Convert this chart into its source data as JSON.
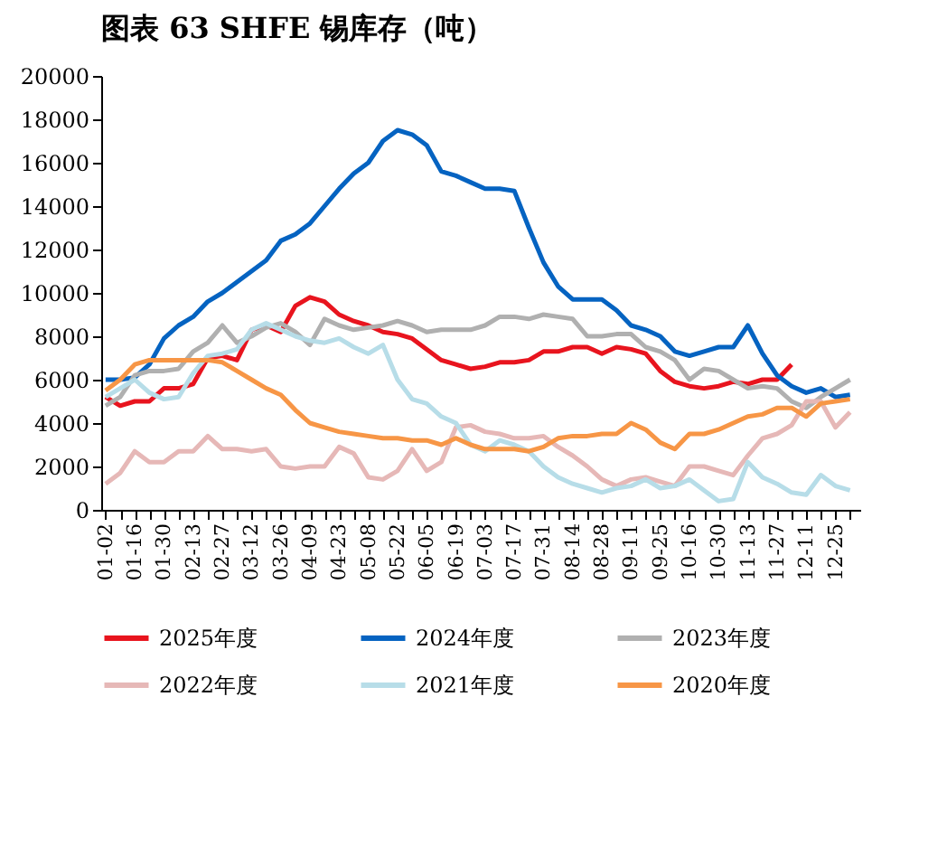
{
  "chart_data": {
    "type": "line",
    "title": "图表 63   SHFE 锡库存（吨）",
    "categories": [
      "01-02",
      null,
      "01-16",
      null,
      "01-30",
      null,
      "02-13",
      null,
      "02-27",
      null,
      "03-12",
      null,
      "03-26",
      null,
      "04-09",
      null,
      "04-23",
      null,
      "05-08",
      null,
      "05-22",
      null,
      "06-05",
      null,
      "06-19",
      null,
      "07-03",
      null,
      "07-17",
      null,
      "07-31",
      null,
      "08-14",
      null,
      "08-28",
      null,
      "09-11",
      null,
      "09-25",
      null,
      "10-16",
      null,
      "10-30",
      null,
      "11-13",
      null,
      "11-27",
      null,
      "12-11",
      null,
      "12-25",
      null
    ],
    "ylim": [
      0,
      20000
    ],
    "yticks": [
      0,
      2000,
      4000,
      6000,
      8000,
      10000,
      12000,
      14000,
      16000,
      18000,
      20000
    ],
    "grid": false,
    "legend": "bottom",
    "line_style": "solid",
    "marker": "none",
    "series": [
      {
        "name": "2025年度",
        "color": "#e8141e",
        "values": [
          5200,
          4800,
          5000,
          5000,
          5600,
          5600,
          5800,
          7000,
          7100,
          6900,
          8300,
          8500,
          8200,
          9400,
          9800,
          9600,
          9000,
          8700,
          8500,
          8200,
          8100,
          7900,
          7400,
          6900,
          6700,
          6500,
          6600,
          6800,
          6800,
          6900,
          7300,
          7300,
          7500,
          7500,
          7200,
          7500,
          7400,
          7200,
          6400,
          5900,
          5700,
          5600,
          5700,
          5900,
          5800,
          6000,
          6000,
          6700,
          null,
          null,
          null,
          null
        ]
      },
      {
        "name": "2024年度",
        "color": "#0563c1",
        "values": [
          6000,
          6000,
          6100,
          6700,
          7900,
          8500,
          8900,
          9600,
          10000,
          10500,
          11000,
          11500,
          12400,
          12700,
          13200,
          14000,
          14800,
          15500,
          16000,
          17000,
          17500,
          17300,
          16800,
          15600,
          15400,
          15100,
          14800,
          14800,
          14700,
          13000,
          11400,
          10300,
          9700,
          9700,
          9700,
          9200,
          8500,
          8300,
          8000,
          7300,
          7100,
          7300,
          7500,
          7500,
          8500,
          7200,
          6200,
          5700,
          5400,
          5600,
          5200,
          5300
        ]
      },
      {
        "name": "2023年度",
        "color": "#b0b0b0",
        "values": [
          4800,
          5200,
          6200,
          6400,
          6400,
          6500,
          7300,
          7700,
          8500,
          7700,
          8000,
          8400,
          8600,
          8200,
          7600,
          8800,
          8500,
          8300,
          8400,
          8500,
          8700,
          8500,
          8200,
          8300,
          8300,
          8300,
          8500,
          8900,
          8900,
          8800,
          9000,
          8900,
          8800,
          8000,
          8000,
          8100,
          8100,
          7500,
          7300,
          6900,
          6000,
          6500,
          6400,
          6000,
          5600,
          5700,
          5600,
          5000,
          4700,
          5200,
          5600,
          6000
        ]
      },
      {
        "name": "2022年度",
        "color": "#e6b8b7",
        "values": [
          1200,
          1700,
          2700,
          2200,
          2200,
          2700,
          2700,
          3400,
          2800,
          2800,
          2700,
          2800,
          2000,
          1900,
          2000,
          2000,
          2900,
          2600,
          1500,
          1400,
          1800,
          2800,
          1800,
          2200,
          3800,
          3900,
          3600,
          3500,
          3300,
          3300,
          3400,
          2900,
          2500,
          2000,
          1400,
          1100,
          1400,
          1500,
          1300,
          1100,
          2000,
          2000,
          1800,
          1600,
          2500,
          3300,
          3500,
          3900,
          5000,
          5000,
          3800,
          4500
        ]
      },
      {
        "name": "2021年度",
        "color": "#b7dde8",
        "values": [
          5200,
          5600,
          6000,
          5400,
          5100,
          5200,
          6300,
          7100,
          7200,
          7400,
          8300,
          8600,
          8300,
          8000,
          7800,
          7700,
          7900,
          7500,
          7200,
          7600,
          6000,
          5100,
          4900,
          4300,
          4000,
          3000,
          2700,
          3200,
          3000,
          2700,
          2000,
          1500,
          1200,
          1000,
          800,
          1000,
          1100,
          1400,
          1000,
          1100,
          1400,
          900,
          400,
          500,
          2200,
          1500,
          1200,
          800,
          700,
          1600,
          1100,
          900
        ]
      },
      {
        "name": "2020年度",
        "color": "#f79646",
        "values": [
          5500,
          6000,
          6700,
          6900,
          6900,
          6900,
          6900,
          6900,
          6800,
          6400,
          6000,
          5600,
          5300,
          4600,
          4000,
          3800,
          3600,
          3500,
          3400,
          3300,
          3300,
          3200,
          3200,
          3000,
          3300,
          3000,
          2800,
          2800,
          2800,
          2700,
          2900,
          3300,
          3400,
          3400,
          3500,
          3500,
          4000,
          3700,
          3100,
          2800,
          3500,
          3500,
          3700,
          4000,
          4300,
          4400,
          4700,
          4700,
          4300,
          4900,
          5000,
          5100
        ]
      }
    ]
  }
}
